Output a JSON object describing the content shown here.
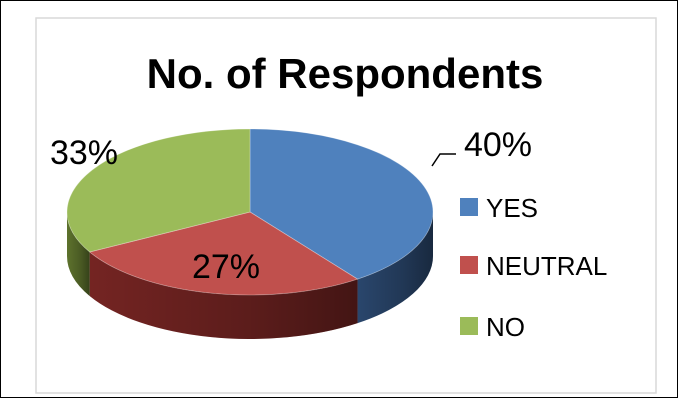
{
  "chart_data": {
    "type": "pie",
    "title": "No. of Respondents",
    "slices": [
      {
        "label": "YES",
        "value": 40,
        "percent_label": "40%",
        "color": "#4f81bd",
        "side_color": "#2c4a72"
      },
      {
        "label": "NEUTRAL",
        "value": 27,
        "percent_label": "27%",
        "color": "#c0504d",
        "side_color": "#7a2624"
      },
      {
        "label": "NO",
        "value": 33,
        "percent_label": "33%",
        "color": "#9bbb59",
        "side_color": "#62782f"
      }
    ],
    "legend_position": "right",
    "style": "3d"
  }
}
